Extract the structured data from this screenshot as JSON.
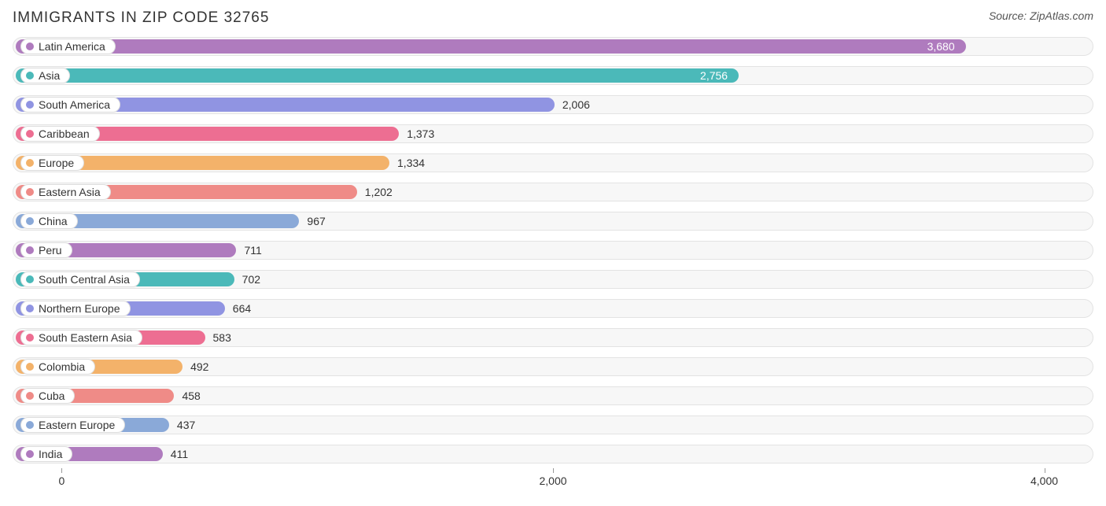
{
  "title": "IMMIGRANTS IN ZIP CODE 32765",
  "source": "Source: ZipAtlas.com",
  "chart": {
    "type": "bar",
    "x_min": -200,
    "x_max": 4200,
    "ticks": [
      {
        "value": 0,
        "label": "0"
      },
      {
        "value": 2000,
        "label": "2,000"
      },
      {
        "value": 4000,
        "label": "4,000"
      }
    ],
    "track_bg": "#f7f7f7",
    "track_border": "#e3e3e3",
    "value_color_outside": "#333333",
    "value_color_inside": "#ffffff",
    "rows": [
      {
        "label": "Latin America",
        "value": 3680,
        "display": "3,680",
        "color": "#af7bbe",
        "value_inside": true
      },
      {
        "label": "Asia",
        "value": 2756,
        "display": "2,756",
        "color": "#4bb9b9",
        "value_inside": true
      },
      {
        "label": "South America",
        "value": 2006,
        "display": "2,006",
        "color": "#9094e2",
        "value_inside": false
      },
      {
        "label": "Caribbean",
        "value": 1373,
        "display": "1,373",
        "color": "#ed6e92",
        "value_inside": false
      },
      {
        "label": "Europe",
        "value": 1334,
        "display": "1,334",
        "color": "#f3b26a",
        "value_inside": false
      },
      {
        "label": "Eastern Asia",
        "value": 1202,
        "display": "1,202",
        "color": "#ef8b87",
        "value_inside": false
      },
      {
        "label": "China",
        "value": 967,
        "display": "967",
        "color": "#8aa9d8",
        "value_inside": false
      },
      {
        "label": "Peru",
        "value": 711,
        "display": "711",
        "color": "#af7bbe",
        "value_inside": false
      },
      {
        "label": "South Central Asia",
        "value": 702,
        "display": "702",
        "color": "#4bb9b9",
        "value_inside": false
      },
      {
        "label": "Northern Europe",
        "value": 664,
        "display": "664",
        "color": "#9094e2",
        "value_inside": false
      },
      {
        "label": "South Eastern Asia",
        "value": 583,
        "display": "583",
        "color": "#ed6e92",
        "value_inside": false
      },
      {
        "label": "Colombia",
        "value": 492,
        "display": "492",
        "color": "#f3b26a",
        "value_inside": false
      },
      {
        "label": "Cuba",
        "value": 458,
        "display": "458",
        "color": "#ef8b87",
        "value_inside": false
      },
      {
        "label": "Eastern Europe",
        "value": 437,
        "display": "437",
        "color": "#8aa9d8",
        "value_inside": false
      },
      {
        "label": "India",
        "value": 411,
        "display": "411",
        "color": "#af7bbe",
        "value_inside": false
      }
    ]
  }
}
